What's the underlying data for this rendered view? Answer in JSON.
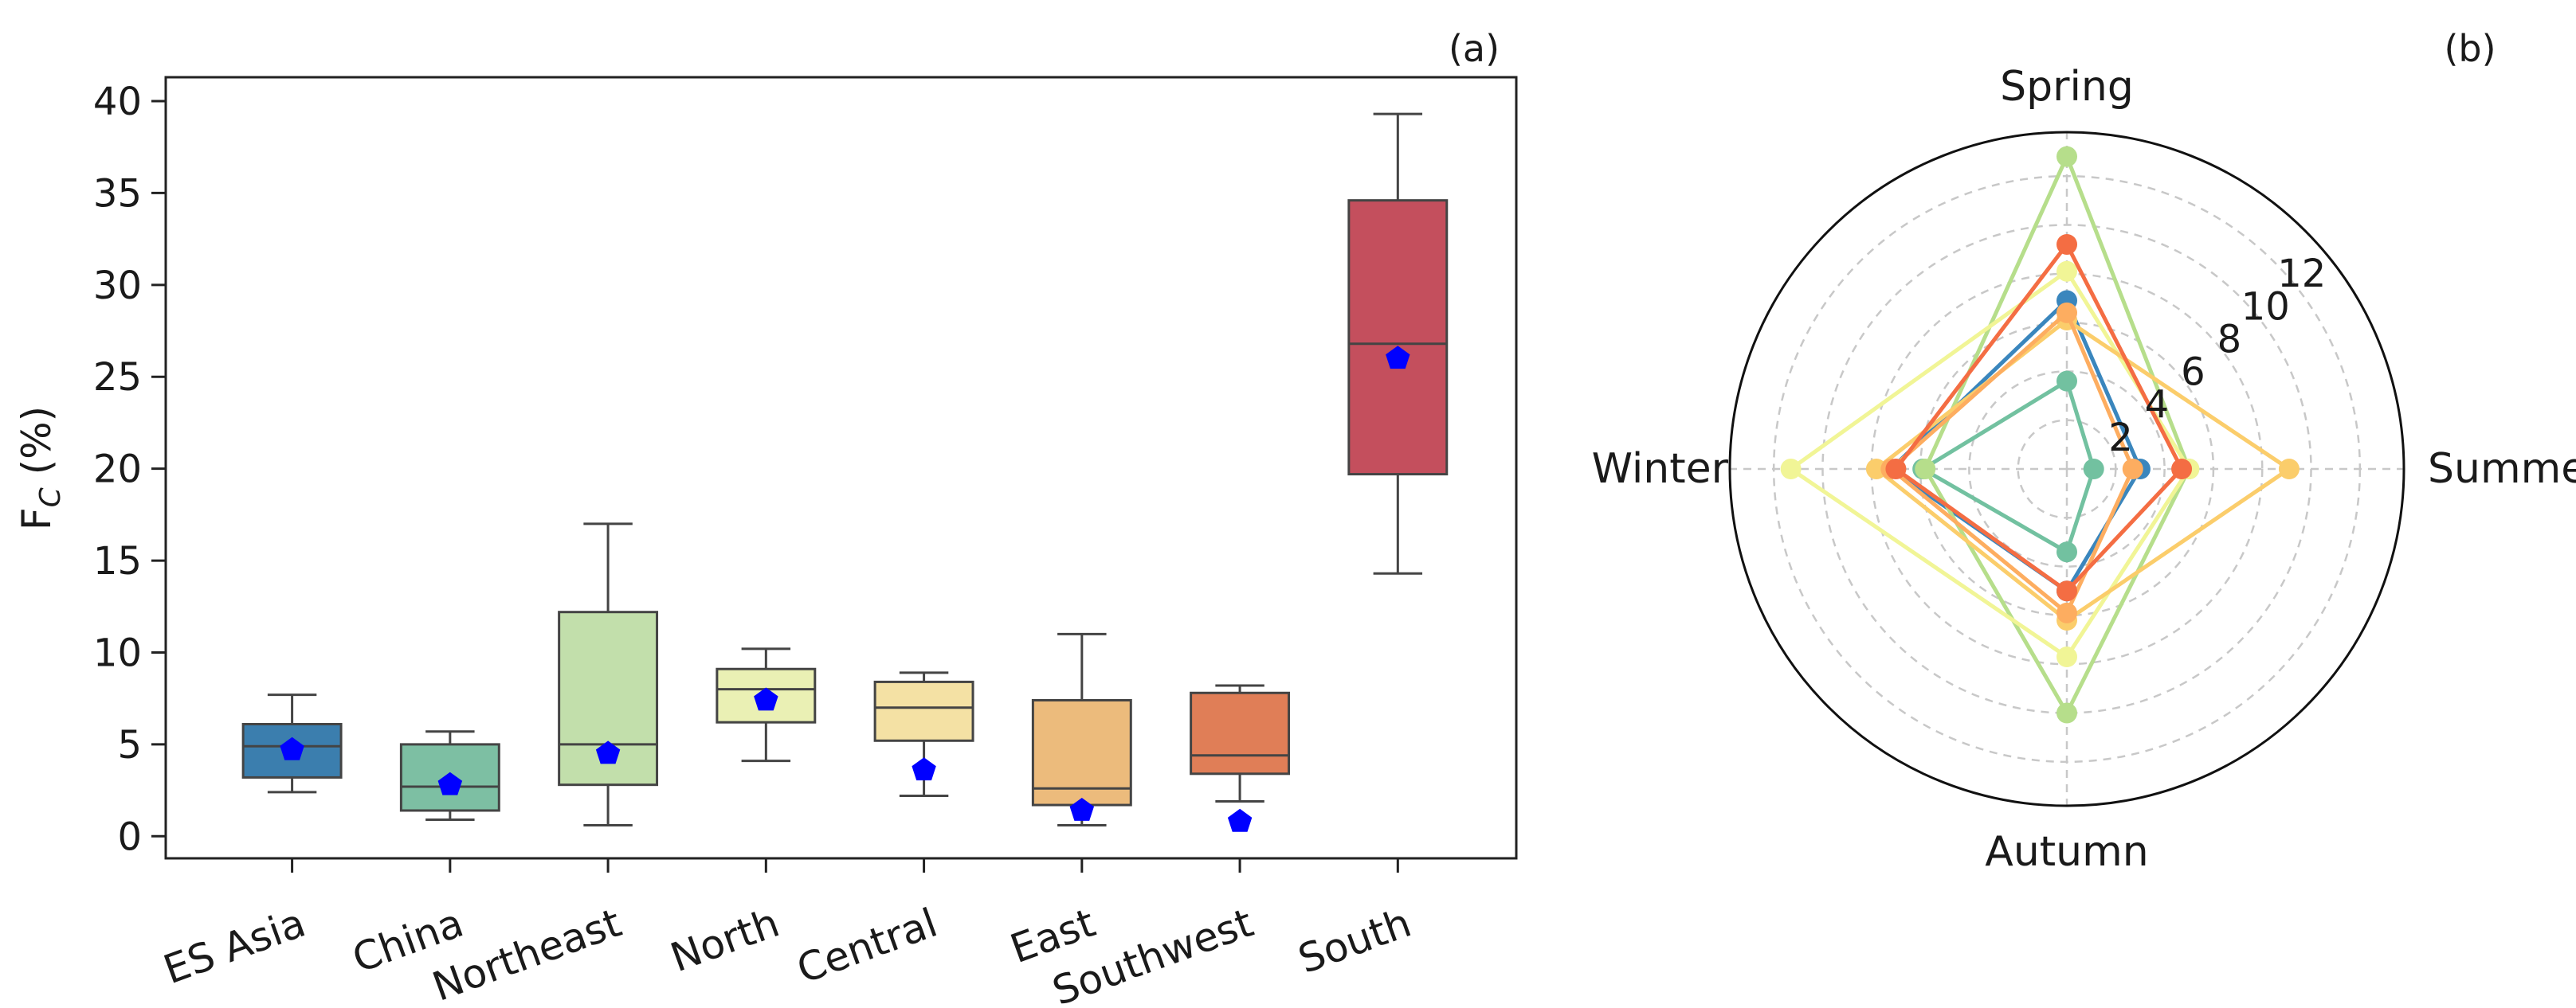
{
  "panel_a": {
    "label": "(a)",
    "ylabel": "F",
    "ylabel_sub": "C",
    "ylabel_unit": " (%)"
  },
  "panel_b": {
    "label": "(b)"
  },
  "chart_data": [
    {
      "type": "box",
      "ylabel": "FC (%)",
      "ylim": [
        -1.2,
        41.3
      ],
      "yticks": [
        0,
        5,
        10,
        15,
        20,
        25,
        30,
        35,
        40
      ],
      "grid": false,
      "categories": [
        "ES Asia",
        "China",
        "Northeast",
        "North",
        "Central",
        "East",
        "Southwest",
        "South"
      ],
      "boxes": [
        {
          "category": "ES Asia",
          "whislo": 2.4,
          "q1": 3.2,
          "med": 4.9,
          "q3": 6.1,
          "whishi": 7.7,
          "mean": 4.7,
          "color": "#3b7eae"
        },
        {
          "category": "China",
          "whislo": 0.9,
          "q1": 1.4,
          "med": 2.7,
          "q3": 5.0,
          "whishi": 5.7,
          "mean": 2.8,
          "color": "#7dbfa3"
        },
        {
          "category": "Northeast",
          "whislo": 0.6,
          "q1": 2.8,
          "med": 5.0,
          "q3": 12.2,
          "whishi": 17.0,
          "mean": 4.5,
          "color": "#c2dfab"
        },
        {
          "category": "North",
          "whislo": 4.1,
          "q1": 6.2,
          "med": 8.0,
          "q3": 9.1,
          "whishi": 10.2,
          "mean": 7.4,
          "color": "#eaf0b4"
        },
        {
          "category": "Central",
          "whislo": 2.2,
          "q1": 5.2,
          "med": 7.0,
          "q3": 8.4,
          "whishi": 8.9,
          "mean": 3.6,
          "color": "#f4e1a4"
        },
        {
          "category": "East",
          "whislo": 0.6,
          "q1": 1.7,
          "med": 2.6,
          "q3": 7.4,
          "whishi": 11.0,
          "mean": 1.4,
          "color": "#ecbb7c"
        },
        {
          "category": "Southwest",
          "whislo": 1.9,
          "q1": 3.4,
          "med": 4.4,
          "q3": 7.8,
          "whishi": 8.2,
          "mean": 0.8,
          "color": "#e07e57"
        },
        {
          "category": "South",
          "whislo": 14.3,
          "q1": 19.7,
          "med": 26.8,
          "q3": 34.6,
          "whishi": 39.3,
          "mean": 26.0,
          "color": "#c44f5d"
        }
      ],
      "mean_marker": {
        "shape": "pentagon",
        "color": "#0000ff"
      }
    },
    {
      "type": "radar",
      "axes": [
        "Spring",
        "Summer",
        "Autumn",
        "Winter"
      ],
      "rmax": 13.8,
      "rticks": [
        2,
        4,
        6,
        8,
        10,
        12
      ],
      "grid": true,
      "series": [
        {
          "values": [
            6.9,
            3.0,
            5.0,
            7.2
          ],
          "color": "#3a86bd"
        },
        {
          "values": [
            3.6,
            1.1,
            3.4,
            5.9
          ],
          "color": "#72c1a0"
        },
        {
          "values": [
            12.8,
            5.0,
            10.0,
            5.8
          ],
          "color": "#b6de8b"
        },
        {
          "values": [
            8.1,
            5.0,
            7.7,
            11.3
          ],
          "color": "#f1f596"
        },
        {
          "values": [
            6.1,
            9.1,
            6.2,
            7.8
          ],
          "color": "#fbcd6b"
        },
        {
          "values": [
            6.4,
            2.7,
            5.9,
            7.2
          ],
          "color": "#fdad60"
        },
        {
          "values": [
            9.2,
            4.7,
            5.0,
            7.0
          ],
          "color": "#f46d43"
        }
      ]
    }
  ]
}
